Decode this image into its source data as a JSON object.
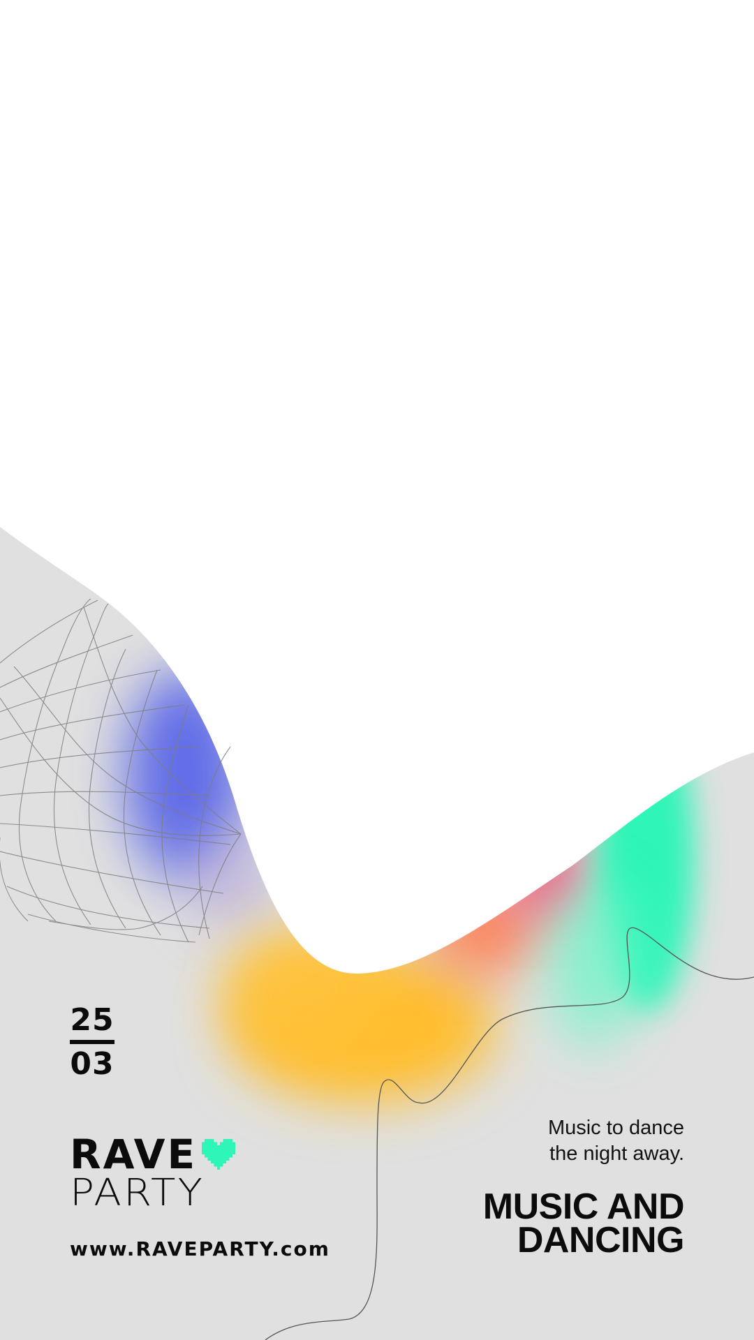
{
  "event": {
    "date_day": "25",
    "date_month": "03",
    "brand_line1": "RAVE",
    "brand_line2": "PARTY",
    "website": "www.RAVEPARTY.com",
    "tagline_line1": "Music to dance",
    "tagline_line2": "the night away.",
    "headline_line1": "MUSIC AND",
    "headline_line2": "DANCING"
  },
  "icons": {
    "heart": "pixel-heart-icon"
  },
  "colors": {
    "background_top": "#ffffff",
    "background_bottom": "#e0e0e0",
    "text": "#0b0b0b",
    "accent_green": "#2ef5b8",
    "accent_blue": "#5a66e8",
    "accent_orange": "#ffbe2e",
    "accent_pink": "#f5557a"
  }
}
